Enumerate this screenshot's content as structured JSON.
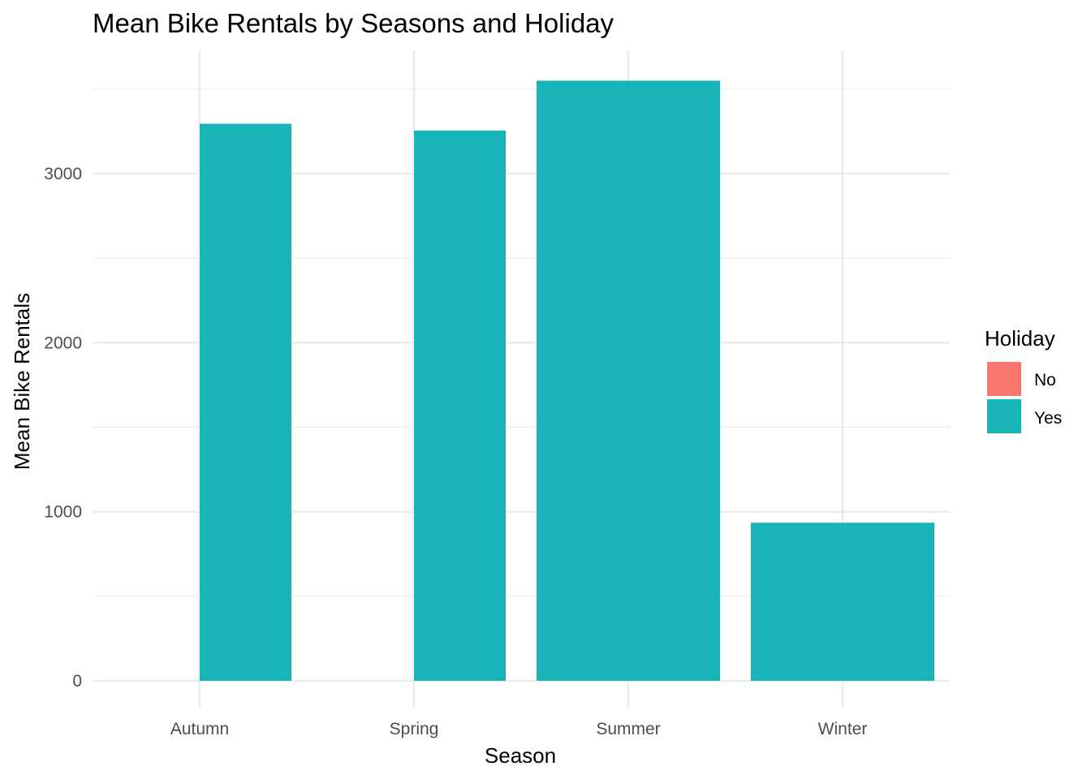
{
  "chart_data": {
    "type": "bar",
    "title": "Mean Bike Rentals by Seasons and Holiday",
    "xlabel": "Season",
    "ylabel": "Mean Bike Rentals",
    "categories": [
      "Autumn",
      "Spring",
      "Summer",
      "Winter"
    ],
    "series": [
      {
        "name": "No",
        "color": "#F8766D",
        "values": [
          null,
          null,
          3550,
          935
        ]
      },
      {
        "name": "Yes",
        "color": "#19B4B8",
        "values": [
          3295,
          3255,
          null,
          null
        ]
      }
    ],
    "ylim": [
      0,
      3600
    ],
    "yticks": [
      0,
      1000,
      2000,
      3000
    ],
    "grid": true,
    "legend": {
      "title": "Holiday",
      "position": "right",
      "labels": [
        "No",
        "Yes"
      ]
    }
  }
}
